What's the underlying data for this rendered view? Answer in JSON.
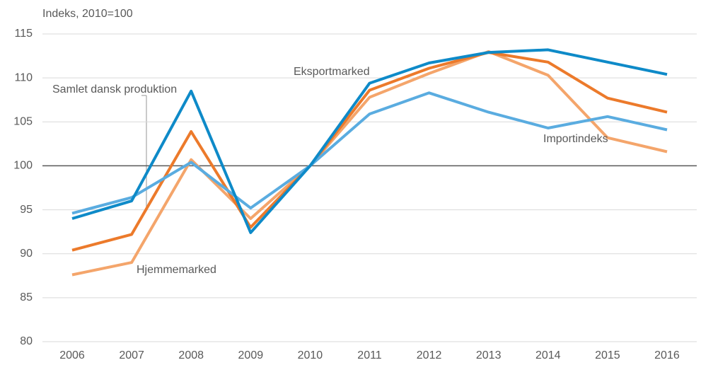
{
  "chart_data": {
    "type": "line",
    "y_axis_label": "Indeks, 2010=100",
    "categories": [
      "2006",
      "2007",
      "2008",
      "2009",
      "2010",
      "2011",
      "2012",
      "2013",
      "2014",
      "2015",
      "2016"
    ],
    "series": [
      {
        "name": "Hjemmemarked",
        "color": "#f4a56b",
        "values": [
          87.6,
          89.0,
          100.7,
          94.0,
          100,
          107.8,
          110.5,
          113.0,
          110.3,
          103.2,
          101.6
        ]
      },
      {
        "name": "Samlet dansk produktion",
        "color": "#ec7a2b",
        "values": [
          90.4,
          92.2,
          103.9,
          93.0,
          100,
          108.6,
          111.1,
          112.9,
          111.8,
          107.7,
          106.1
        ]
      },
      {
        "name": "Importindeks",
        "color": "#5aace0",
        "values": [
          94.6,
          96.4,
          100.4,
          95.2,
          100,
          105.9,
          108.3,
          106.1,
          104.3,
          105.6,
          104.1
        ]
      },
      {
        "name": "Eksportmarked",
        "color": "#0e8ac8",
        "values": [
          94.0,
          96.0,
          108.5,
          92.4,
          100,
          109.4,
          111.7,
          112.9,
          113.2,
          111.8,
          110.4
        ]
      }
    ],
    "ylim": [
      80,
      115
    ],
    "yticks": [
      80,
      85,
      90,
      95,
      100,
      105,
      110,
      115
    ],
    "grid": true,
    "reference_line": 100
  }
}
